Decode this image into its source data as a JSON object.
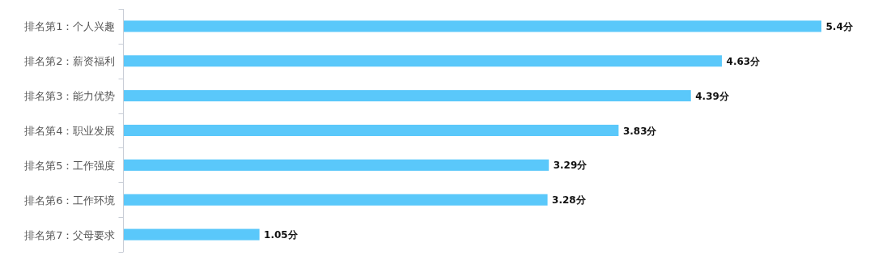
{
  "chart_data": {
    "type": "bar",
    "orientation": "horizontal",
    "categories": [
      "排名第1：个人兴趣",
      "排名第2：薪资福利",
      "排名第3：能力优势",
      "排名第4：职业发展",
      "排名第5：工作强度",
      "排名第6：工作环境",
      "排名第7：父母要求"
    ],
    "values": [
      5.4,
      4.63,
      4.39,
      3.83,
      3.29,
      3.28,
      1.05
    ],
    "value_labels": [
      "5.4分",
      "4.63分",
      "4.39分",
      "3.83分",
      "3.29分",
      "3.28分",
      "1.05分"
    ],
    "color": "#5ac8fa"
  }
}
